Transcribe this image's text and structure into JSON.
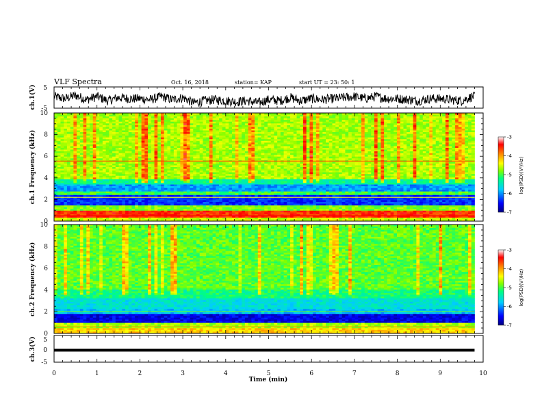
{
  "header": {
    "title": "VLF Spectra",
    "date": "Oct. 16, 2018",
    "station": "station= KAP",
    "start": "start UT =  23: 50: 1"
  },
  "chart_data": [
    {
      "type": "line",
      "panel": "ch1-waveform",
      "ylabel": "ch.1(V)",
      "ylim": [
        -5,
        5
      ],
      "yticks": [
        "5",
        "-5"
      ],
      "xlim": [
        0,
        10
      ],
      "x": [
        0,
        0.25,
        0.5,
        0.75,
        1,
        1.25,
        1.5,
        1.75,
        2,
        2.25,
        2.5,
        2.75,
        3,
        3.25,
        3.5,
        3.75,
        4,
        4.25,
        4.5,
        4.75,
        5,
        5.25,
        5.5,
        5.75,
        6,
        6.25,
        6.5,
        6.75,
        7,
        7.25,
        7.5,
        7.75,
        8,
        8.25,
        8.5,
        8.75,
        9,
        9.25,
        9.5,
        9.75
      ],
      "values": [
        0.5,
        -0.5,
        1,
        -1,
        0.5,
        -1.5,
        0,
        -0.5,
        -0.5,
        -1,
        0.5,
        -1,
        0,
        -2.5,
        -1.5,
        -1,
        -1.5,
        -2,
        -1.5,
        -2.5,
        -1,
        -1.5,
        0,
        -1.5,
        -0.5,
        -1,
        -0.5,
        0,
        0.5,
        -0.5,
        0.5,
        -0.5,
        -0.5,
        -1,
        -1.5,
        -0.5,
        -0.5,
        -1,
        -1.5,
        0.5
      ],
      "color": "#000000"
    },
    {
      "type": "heatmap",
      "panel": "ch1-spectrogram",
      "ylabel": "ch.1 Frequency (kHz)",
      "ylim": [
        0,
        10
      ],
      "yticks": [
        "0",
        "2",
        "4",
        "6",
        "8",
        "10"
      ],
      "xlim": [
        0,
        9.8
      ],
      "colorbar": {
        "label": "log(PSD)(V²/Hz)",
        "range": [
          -7,
          -3
        ],
        "ticks": [
          "-3",
          "-4",
          "-5",
          "-6",
          "-7"
        ]
      }
    },
    {
      "type": "heatmap",
      "panel": "ch2-spectrogram",
      "ylabel": "ch.2 Frequency (kHz)",
      "ylim": [
        0,
        10
      ],
      "yticks": [
        "0",
        "2",
        "4",
        "6",
        "8",
        "10"
      ],
      "xlim": [
        0,
        9.8
      ],
      "colorbar": {
        "label": "log(PSD)(V²/Hz)",
        "range": [
          -7,
          -3
        ],
        "ticks": [
          "-3",
          "-4",
          "-5",
          "-6",
          "-7"
        ]
      }
    },
    {
      "type": "line",
      "panel": "ch3-waveform",
      "ylabel": "ch.3(V)",
      "ylim": [
        -5,
        5
      ],
      "yticks": [
        "5",
        "0",
        "-5"
      ],
      "xlim": [
        0,
        10
      ],
      "x": [
        0,
        9.8
      ],
      "values": [
        0,
        0
      ],
      "color": "#000000"
    }
  ],
  "xaxis": {
    "label": "Time (min)",
    "ticks": [
      "0",
      "1",
      "2",
      "3",
      "4",
      "5",
      "6",
      "7",
      "8",
      "9",
      "10"
    ]
  },
  "colormap": [
    "#00007f",
    "#0000ff",
    "#00bfff",
    "#00ffff",
    "#00ff7f",
    "#7fff00",
    "#ffff00",
    "#ff8000",
    "#ff0000",
    "#ffffff"
  ]
}
